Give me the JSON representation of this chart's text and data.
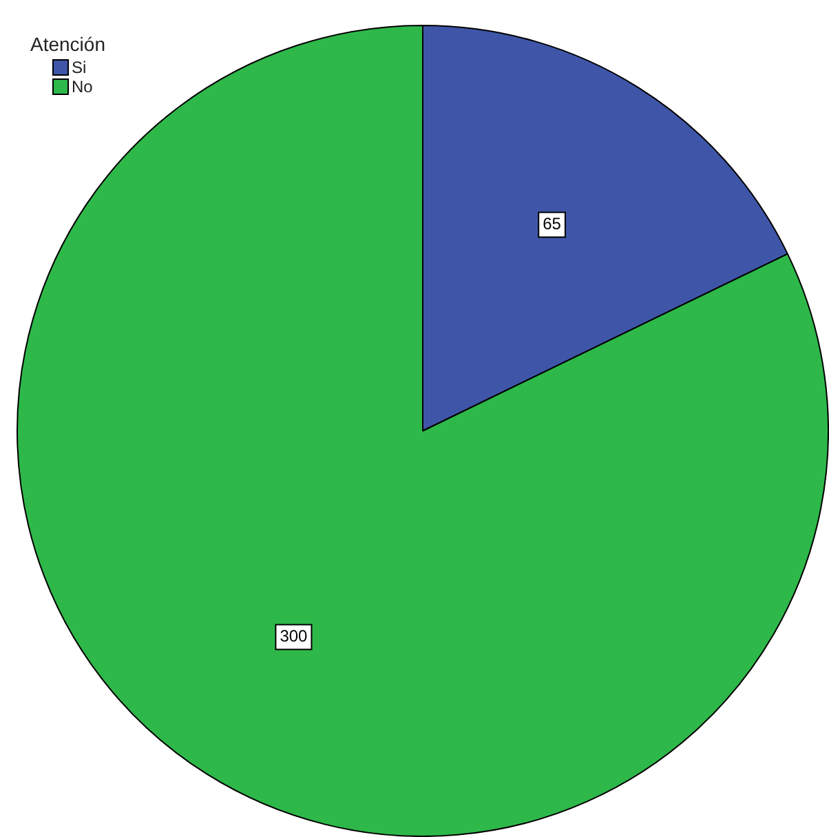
{
  "chart_data": {
    "type": "pie",
    "legend_title": "Atención",
    "legend": "top left",
    "data_labels": true,
    "categories": [
      "Si",
      "No"
    ],
    "values": [
      65,
      300
    ],
    "colors": [
      "#3f56a8",
      "#2eb84a"
    ]
  }
}
